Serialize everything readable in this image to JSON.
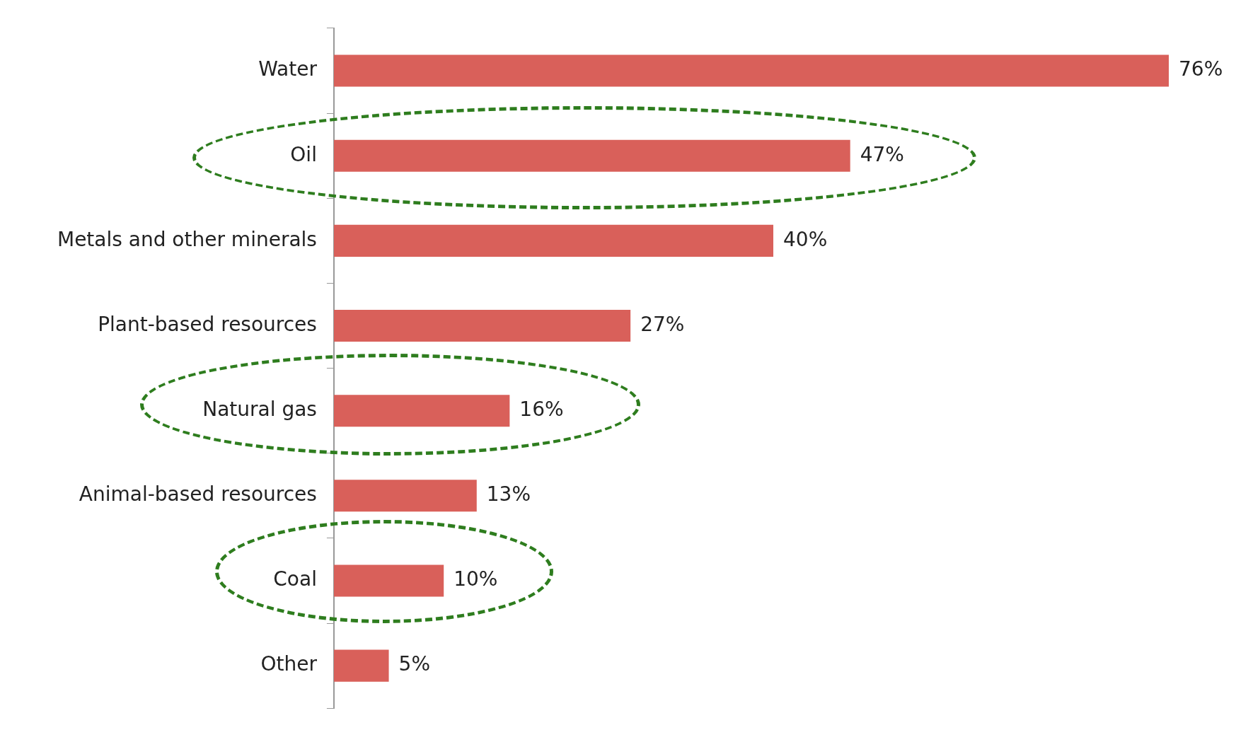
{
  "chart_data": {
    "type": "bar",
    "orientation": "horizontal",
    "categories": [
      "Water",
      "Oil",
      "Metals and other minerals",
      "Plant-based resources",
      "Natural gas",
      "Animal-based resources",
      "Coal",
      "Other"
    ],
    "values": [
      76,
      47,
      40,
      27,
      16,
      13,
      10,
      5
    ],
    "value_labels": [
      "76%",
      "47%",
      "40%",
      "27%",
      "16%",
      "13%",
      "10%",
      "5%"
    ],
    "color": "#d9605a",
    "tick_labels": "y"
  }
}
